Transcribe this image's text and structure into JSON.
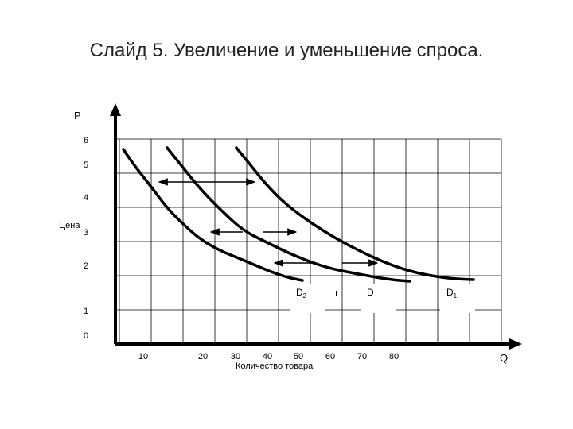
{
  "slide": {
    "title": "Слайд 5. Увеличение и уменьшение спроса."
  },
  "chart_data": {
    "type": "line",
    "title": "",
    "xlabel": "Количество товара",
    "ylabel": "Цена",
    "x_axis_letter": "Q",
    "y_axis_letter": "P",
    "x_ticks": [
      "10",
      "20",
      "30",
      "40",
      "50",
      "60",
      "70",
      "80"
    ],
    "y_ticks": [
      "0",
      "1",
      "2",
      "3",
      "4",
      "5",
      "6"
    ],
    "grid": true,
    "xlim": [
      0,
      90
    ],
    "ylim": [
      0,
      6.5
    ],
    "series": [
      {
        "name": "D2",
        "label_main": "D",
        "label_sub": "2",
        "points": [
          [
            0.5,
            6.0
          ],
          [
            5,
            4.9
          ],
          [
            10,
            4.2
          ],
          [
            15,
            3.6
          ],
          [
            20,
            3.0
          ],
          [
            25,
            2.65
          ],
          [
            30,
            2.35
          ],
          [
            35,
            2.1
          ],
          [
            40,
            1.85
          ],
          [
            45,
            1.68
          ],
          [
            50,
            1.62
          ]
        ]
      },
      {
        "name": "D",
        "label_main": "D",
        "label_sub": "",
        "points": [
          [
            7.5,
            6.0
          ],
          [
            12,
            5.0
          ],
          [
            17,
            4.2
          ],
          [
            22,
            3.5
          ],
          [
            28,
            3.0
          ],
          [
            33,
            2.65
          ],
          [
            38,
            2.4
          ],
          [
            43,
            2.1
          ],
          [
            48,
            1.85
          ],
          [
            53,
            1.7
          ],
          [
            58,
            1.62
          ],
          [
            63,
            1.58
          ]
        ]
      },
      {
        "name": "D1",
        "label_main": "D",
        "label_sub": "1",
        "points": [
          [
            18,
            6.0
          ],
          [
            22,
            5.0
          ],
          [
            27,
            4.2
          ],
          [
            32,
            3.6
          ],
          [
            37,
            3.1
          ],
          [
            42,
            2.7
          ],
          [
            47,
            2.4
          ],
          [
            52,
            2.15
          ],
          [
            57,
            1.95
          ],
          [
            62,
            1.8
          ],
          [
            67,
            1.7
          ],
          [
            72,
            1.64
          ],
          [
            76,
            1.62
          ]
        ]
      }
    ],
    "arrows": [
      {
        "direction": "left",
        "from": [
          20,
          4.55
        ],
        "to": [
          7,
          4.55
        ]
      },
      {
        "direction": "right",
        "from": [
          13,
          4.55
        ],
        "to": [
          20,
          4.55
        ]
      },
      {
        "direction": "left",
        "from": [
          22,
          3.0
        ],
        "to": [
          14,
          3.0
        ]
      },
      {
        "direction": "right",
        "from": [
          22,
          3.0
        ],
        "to": [
          30,
          3.0
        ]
      },
      {
        "direction": "left",
        "from": [
          38,
          2.1
        ],
        "to": [
          25,
          2.1
        ]
      },
      {
        "direction": "right",
        "from": [
          38,
          2.1
        ],
        "to": [
          47,
          2.1
        ]
      }
    ]
  }
}
